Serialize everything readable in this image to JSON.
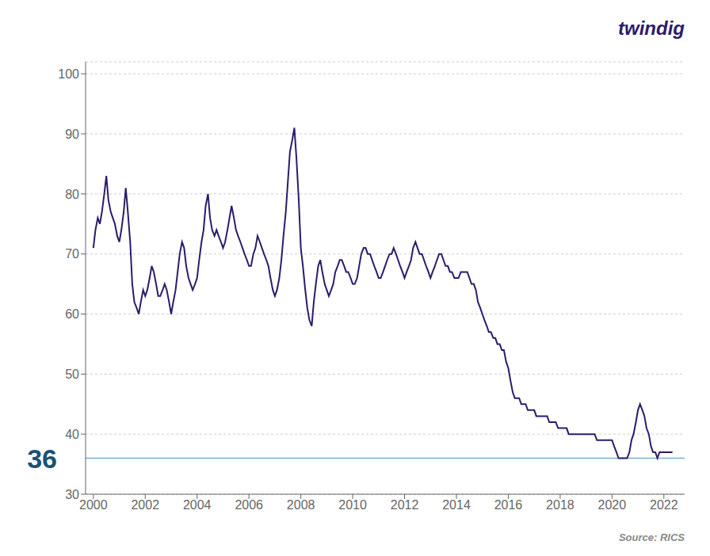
{
  "chart_data": {
    "type": "line",
    "x": [
      2000.0,
      2000.08,
      2000.17,
      2000.25,
      2000.33,
      2000.42,
      2000.5,
      2000.58,
      2000.67,
      2000.75,
      2000.83,
      2000.92,
      2001.0,
      2001.08,
      2001.17,
      2001.25,
      2001.33,
      2001.42,
      2001.5,
      2001.58,
      2001.67,
      2001.75,
      2001.83,
      2001.92,
      2002.0,
      2002.08,
      2002.17,
      2002.25,
      2002.33,
      2002.42,
      2002.5,
      2002.58,
      2002.67,
      2002.75,
      2002.83,
      2002.92,
      2003.0,
      2003.08,
      2003.17,
      2003.25,
      2003.33,
      2003.42,
      2003.5,
      2003.58,
      2003.67,
      2003.75,
      2003.83,
      2003.92,
      2004.0,
      2004.08,
      2004.17,
      2004.25,
      2004.33,
      2004.42,
      2004.5,
      2004.58,
      2004.67,
      2004.75,
      2004.83,
      2004.92,
      2005.0,
      2005.08,
      2005.17,
      2005.25,
      2005.33,
      2005.42,
      2005.5,
      2005.58,
      2005.67,
      2005.75,
      2005.83,
      2005.92,
      2006.0,
      2006.08,
      2006.17,
      2006.25,
      2006.33,
      2006.42,
      2006.5,
      2006.58,
      2006.67,
      2006.75,
      2006.83,
      2006.92,
      2007.0,
      2007.08,
      2007.17,
      2007.25,
      2007.33,
      2007.42,
      2007.5,
      2007.58,
      2007.67,
      2007.75,
      2007.83,
      2007.92,
      2008.0,
      2008.08,
      2008.17,
      2008.25,
      2008.33,
      2008.42,
      2008.5,
      2008.58,
      2008.67,
      2008.75,
      2008.83,
      2008.92,
      2009.0,
      2009.08,
      2009.17,
      2009.25,
      2009.33,
      2009.42,
      2009.5,
      2009.58,
      2009.67,
      2009.75,
      2009.83,
      2009.92,
      2010.0,
      2010.08,
      2010.17,
      2010.25,
      2010.33,
      2010.42,
      2010.5,
      2010.58,
      2010.67,
      2010.75,
      2010.83,
      2010.92,
      2011.0,
      2011.08,
      2011.17,
      2011.25,
      2011.33,
      2011.42,
      2011.5,
      2011.58,
      2011.67,
      2011.75,
      2011.83,
      2011.92,
      2012.0,
      2012.08,
      2012.17,
      2012.25,
      2012.33,
      2012.42,
      2012.5,
      2012.58,
      2012.67,
      2012.75,
      2012.83,
      2012.92,
      2013.0,
      2013.08,
      2013.17,
      2013.25,
      2013.33,
      2013.42,
      2013.5,
      2013.58,
      2013.67,
      2013.75,
      2013.83,
      2013.92,
      2014.0,
      2014.08,
      2014.17,
      2014.25,
      2014.33,
      2014.42,
      2014.5,
      2014.58,
      2014.67,
      2014.75,
      2014.83,
      2014.92,
      2015.0,
      2015.08,
      2015.17,
      2015.25,
      2015.33,
      2015.42,
      2015.5,
      2015.58,
      2015.67,
      2015.75,
      2015.83,
      2015.92,
      2016.0,
      2016.08,
      2016.17,
      2016.25,
      2016.33,
      2016.42,
      2016.5,
      2016.58,
      2016.67,
      2016.75,
      2016.83,
      2016.92,
      2017.0,
      2017.08,
      2017.17,
      2017.25,
      2017.33,
      2017.42,
      2017.5,
      2017.58,
      2017.67,
      2017.75,
      2017.83,
      2017.92,
      2018.0,
      2018.08,
      2018.17,
      2018.25,
      2018.33,
      2018.42,
      2018.5,
      2018.58,
      2018.67,
      2018.75,
      2018.83,
      2018.92,
      2019.0,
      2019.08,
      2019.17,
      2019.25,
      2019.33,
      2019.42,
      2019.5,
      2019.58,
      2019.67,
      2019.75,
      2019.83,
      2019.92,
      2020.0,
      2020.08,
      2020.17,
      2020.25,
      2020.33,
      2020.42,
      2020.5,
      2020.58,
      2020.67,
      2020.75,
      2020.83,
      2020.92,
      2021.0,
      2021.08,
      2021.17,
      2021.25,
      2021.33,
      2021.42,
      2021.5,
      2021.58,
      2021.67,
      2021.75,
      2021.83,
      2021.92,
      2022.0,
      2022.08,
      2022.17,
      2022.33
    ],
    "values": [
      71,
      74,
      76,
      75,
      77,
      80,
      83,
      79,
      77,
      76,
      75,
      73,
      72,
      74,
      77,
      81,
      77,
      72,
      65,
      62,
      61,
      60,
      62,
      64,
      63,
      64,
      66,
      68,
      67,
      65,
      63,
      63,
      64,
      65,
      64,
      62,
      60,
      62,
      64,
      67,
      70,
      72,
      71,
      68,
      66,
      65,
      64,
      65,
      66,
      69,
      72,
      74,
      78,
      80,
      76,
      74,
      73,
      74,
      73,
      72,
      71,
      72,
      74,
      76,
      78,
      76,
      74,
      73,
      72,
      71,
      70,
      69,
      68,
      68,
      70,
      71,
      73,
      72,
      71,
      70,
      69,
      68,
      66,
      64,
      63,
      64,
      66,
      69,
      73,
      77,
      82,
      87,
      89,
      91,
      86,
      79,
      71,
      68,
      64,
      61,
      59,
      58,
      62,
      65,
      68,
      69,
      67,
      65,
      64,
      63,
      64,
      65,
      67,
      68,
      69,
      69,
      68,
      67,
      67,
      66,
      65,
      65,
      66,
      68,
      70,
      71,
      71,
      70,
      70,
      69,
      68,
      67,
      66,
      66,
      67,
      68,
      69,
      70,
      70,
      71,
      70,
      69,
      68,
      67,
      66,
      67,
      68,
      69,
      71,
      72,
      71,
      70,
      70,
      69,
      68,
      67,
      66,
      67,
      68,
      69,
      70,
      70,
      69,
      68,
      68,
      67,
      67,
      66,
      66,
      66,
      67,
      67,
      67,
      67,
      66,
      65,
      65,
      64,
      62,
      61,
      60,
      59,
      58,
      57,
      57,
      56,
      56,
      55,
      55,
      54,
      54,
      52,
      51,
      49,
      47,
      46,
      46,
      46,
      45,
      45,
      45,
      44,
      44,
      44,
      44,
      43,
      43,
      43,
      43,
      43,
      43,
      42,
      42,
      42,
      42,
      41,
      41,
      41,
      41,
      41,
      40,
      40,
      40,
      40,
      40,
      40,
      40,
      40,
      40,
      40,
      40,
      40,
      40,
      39,
      39,
      39,
      39,
      39,
      39,
      39,
      39,
      38,
      37,
      36,
      36,
      36,
      36,
      36,
      37,
      39,
      40,
      42,
      44,
      45,
      44,
      43,
      41,
      40,
      38,
      37,
      37,
      36,
      37,
      37,
      37,
      37,
      37,
      37
    ],
    "color": "#2d1b6b",
    "xlim": [
      1999.7,
      2022.8
    ],
    "xticks": [
      2000,
      2002,
      2004,
      2006,
      2008,
      2010,
      2012,
      2014,
      2016,
      2018,
      2020,
      2022
    ],
    "ylim": [
      30,
      102
    ],
    "yticks": [
      30,
      40,
      50,
      60,
      70,
      80,
      90,
      100
    ],
    "grid": true,
    "reference_line": {
      "y": 36,
      "color": "#7bafd4"
    },
    "annotations": [
      {
        "text": "36",
        "y": 36,
        "color": "#1a5276"
      }
    ],
    "brand": {
      "text": "twindig",
      "color": "#2d1b6b"
    },
    "source": "Source: RICS"
  }
}
